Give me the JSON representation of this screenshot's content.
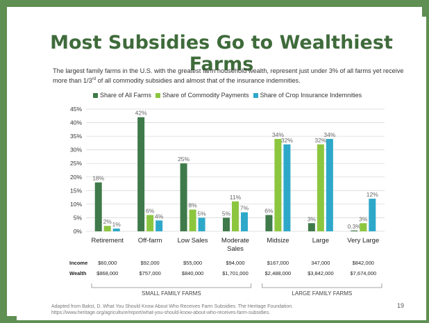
{
  "slide": {
    "title": "Most Subsidies Go to Wealthiest Farms",
    "subtitle_part1": "The largest family farms in the U.S. with the greatest farm household wealth, represent just under 3% of all farms yet receive more than 1/3",
    "subtitle_sup": "rd",
    "subtitle_part2": " of all commodity subsidies and almost that of the insurance indemnities.",
    "footer_line1": "Adapted from Bakst, D. What You Should Know About Who Receives Farm Subsidies. The Heritage Foundation.",
    "footer_line2": "https://www.heritage.org/agriculture/report/what-you-should-know-about-who-receives-farm-subsidies.",
    "page_number": "19"
  },
  "chart_data": {
    "type": "bar",
    "categories": [
      "Retirement",
      "Off-farm",
      "Low Sales",
      "Moderate Sales",
      "Midsize",
      "Large",
      "Very Large"
    ],
    "category_labels": [
      [
        "Retirement"
      ],
      [
        "Off-farm"
      ],
      [
        "Low Sales"
      ],
      [
        "Moderate",
        "Sales"
      ],
      [
        "Midsize"
      ],
      [
        "Large"
      ],
      [
        "Very Large"
      ]
    ],
    "series": [
      {
        "name": "Share of All Farms",
        "color": "#3f7a4a",
        "values": [
          18,
          42,
          25,
          5,
          6,
          3,
          0.3
        ],
        "labels": [
          "18%",
          "42%",
          "25%",
          "5%",
          "6%",
          "3%",
          "0.3%"
        ]
      },
      {
        "name": "Share of Commodity Payments",
        "color": "#8cc63f",
        "values": [
          2,
          6,
          8,
          11,
          34,
          32,
          3
        ],
        "labels": [
          "2%",
          "6%",
          "8%",
          "11%",
          "34%",
          "32%",
          "3%"
        ]
      },
      {
        "name": "Share of Crop Insurance Indemnities",
        "color": "#2ea8c9",
        "values": [
          1,
          4,
          5,
          7,
          32,
          34,
          12
        ],
        "labels": [
          "1%",
          "4%",
          "5%",
          "7%",
          "32%",
          "34%",
          "12%"
        ]
      }
    ],
    "ylim": [
      0,
      45
    ],
    "yticks": [
      "0%",
      "5%",
      "10%",
      "15%",
      "20%",
      "25%",
      "30%",
      "35%",
      "40%",
      "45%"
    ],
    "grid": true,
    "legend_position": "top",
    "row_labels": {
      "income": "Income",
      "wealth": "Wealth"
    },
    "income": [
      "$60,000",
      "$92,000",
      "$55,000",
      "$94,000",
      "$167,000",
      "347,000",
      "$842,000"
    ],
    "wealth": [
      "$868,000",
      "$757,000",
      "$840,000",
      "$1,701,000",
      "$2,488,000",
      "$3,842,000",
      "$7,674,000"
    ],
    "groups": [
      "SMALL FAMILY FARMS",
      "LARGE FAMILY FARMS"
    ]
  }
}
